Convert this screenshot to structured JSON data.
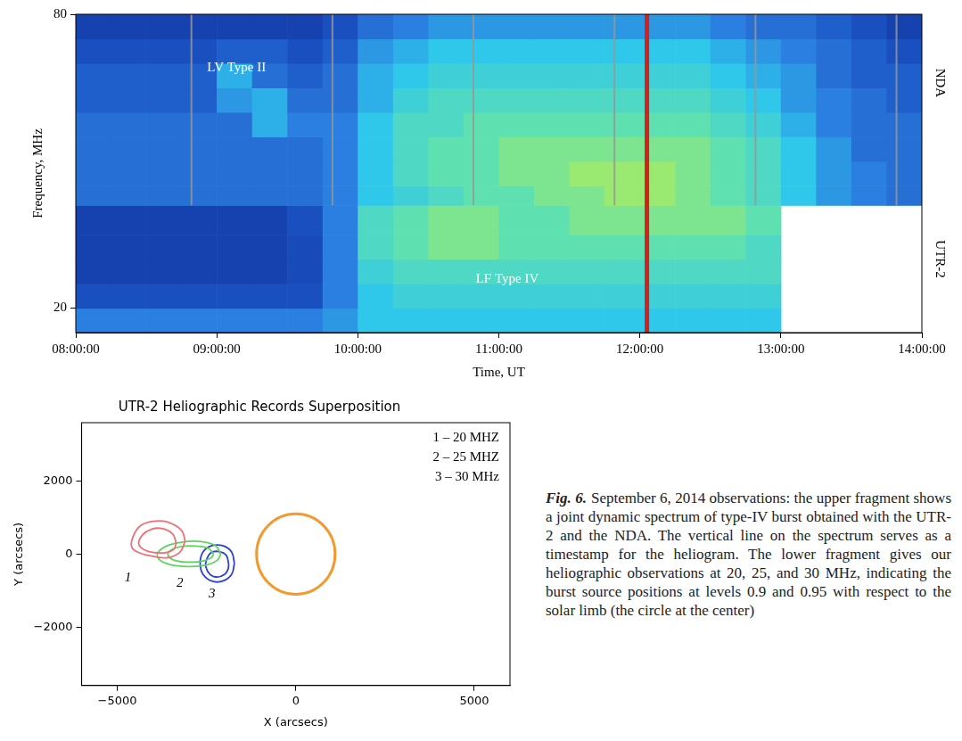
{
  "chart_data": [
    {
      "type": "heatmap",
      "xlabel": "Time, UT",
      "ylabel": "Frequency, MHz",
      "xlim": [
        8,
        14
      ],
      "xticks": [
        {
          "value": 8,
          "label": "08:00:00"
        },
        {
          "value": 9,
          "label": "09:00:00"
        },
        {
          "value": 10,
          "label": "10:00:00"
        },
        {
          "value": 11,
          "label": "11:00:00"
        },
        {
          "value": 12,
          "label": "12:00:00"
        },
        {
          "value": 13,
          "label": "13:00:00"
        },
        {
          "value": 14,
          "label": "14:00:00"
        }
      ],
      "ylim": [
        15,
        80
      ],
      "yticks": [
        20,
        80
      ],
      "grid": false,
      "x_bins": [
        8,
        8.25,
        8.5,
        8.75,
        9,
        9.25,
        9.5,
        9.75,
        10,
        10.25,
        10.5,
        10.75,
        11,
        11.25,
        11.5,
        11.75,
        12,
        12.25,
        12.5,
        12.75,
        13,
        13.25,
        13.5,
        13.75,
        14
      ],
      "y_bins": [
        15,
        20,
        25,
        30,
        35,
        41,
        45,
        50,
        55,
        60,
        65,
        70,
        75,
        80
      ],
      "cells": [
        [
          3.5,
          3.5,
          3.5,
          3.5,
          3.5,
          3.5,
          3.5,
          4,
          5,
          5,
          5,
          5,
          5,
          5,
          5,
          5,
          5,
          5,
          5,
          5,
          null,
          null,
          null,
          null
        ],
        [
          2,
          2,
          2,
          2,
          2,
          2,
          2,
          3.5,
          5,
          5.5,
          5.5,
          5.5,
          5.5,
          5.5,
          5.5,
          5.5,
          5.5,
          5.5,
          5.5,
          5.5,
          null,
          null,
          null,
          null
        ],
        [
          1.5,
          1.5,
          1.5,
          1.5,
          1.5,
          1.5,
          1.8,
          3.5,
          5.5,
          6,
          6,
          6,
          6,
          6,
          6,
          6,
          6,
          6,
          6,
          6,
          null,
          null,
          null,
          null
        ],
        [
          1.5,
          1.5,
          1.5,
          1.5,
          1.5,
          1.5,
          1.8,
          3.5,
          6,
          6.5,
          7,
          7,
          6.5,
          6.5,
          6.5,
          6.5,
          6.5,
          6.5,
          6.5,
          6,
          null,
          null,
          null,
          null
        ],
        [
          1.5,
          1.5,
          1.5,
          1.5,
          1.5,
          1.5,
          2,
          3.5,
          6,
          6.5,
          7,
          7,
          6.5,
          6.5,
          7,
          7,
          7,
          7,
          7,
          6.5,
          null,
          null,
          null,
          null
        ],
        [
          3,
          3,
          3,
          3,
          3,
          3,
          3,
          3.5,
          5,
          5.5,
          6,
          6.5,
          6.5,
          7,
          7,
          7.5,
          7.5,
          7,
          6.5,
          6,
          5,
          4,
          3.5,
          3
        ],
        [
          3,
          3,
          3,
          3,
          3,
          3,
          3,
          3.5,
          5,
          6,
          6.5,
          6.5,
          7,
          7,
          7.5,
          7.5,
          7.5,
          7,
          6.5,
          6,
          5,
          4,
          3.5,
          3
        ],
        [
          3,
          3,
          3,
          3,
          3,
          3,
          3,
          3.5,
          5,
          6,
          6.5,
          6.5,
          7,
          7,
          7,
          7,
          7,
          7,
          6.5,
          6,
          5,
          4,
          3,
          3
        ],
        [
          3,
          3,
          3,
          3,
          3,
          4.5,
          3.5,
          3.5,
          5,
          6,
          6,
          6.5,
          6.5,
          6.5,
          6.5,
          6.5,
          6.5,
          6.5,
          6,
          5.5,
          4.5,
          3.5,
          3,
          3
        ],
        [
          2.5,
          2.5,
          2.5,
          2.5,
          4,
          4.5,
          3,
          3,
          4.5,
          5.5,
          6,
          6,
          6,
          6,
          6,
          6,
          6,
          6,
          5.5,
          5,
          4,
          3.5,
          3,
          2.5
        ],
        [
          2.5,
          2.5,
          2.5,
          2.5,
          4.5,
          3,
          2.5,
          3,
          4.5,
          5,
          5.5,
          5.5,
          5.5,
          5.5,
          5.5,
          5.5,
          5.5,
          5.5,
          5,
          4.5,
          4,
          3,
          2.5,
          2.5
        ],
        [
          2,
          2,
          2,
          2,
          2.5,
          2.5,
          2,
          2.5,
          4,
          4.5,
          5,
          5,
          5,
          5,
          5,
          5,
          5,
          5,
          4.5,
          4,
          3.5,
          3,
          2.5,
          2
        ],
        [
          1.5,
          1.5,
          1.5,
          1.5,
          1.5,
          1.5,
          1.5,
          2,
          3,
          3.5,
          4,
          4,
          4,
          4,
          4,
          4,
          4,
          4,
          3.5,
          3,
          3,
          2.5,
          2,
          1.5
        ]
      ],
      "color_range": [
        0,
        10
      ],
      "vertical_lines": [
        8.82,
        9.82,
        10.82,
        11.82,
        12.82,
        13.82
      ],
      "vertical_lines_range": [
        41,
        80
      ],
      "timestamp": 12.05,
      "annotations": [
        {
          "text": "LV Type II",
          "x": 9.14,
          "y": 69
        },
        {
          "text": "LF Type IV",
          "x": 11.06,
          "y": 26
        }
      ],
      "instrument_labels": [
        {
          "text": "NDA",
          "y": 66
        },
        {
          "text": "UTR-2",
          "y": 30
        }
      ]
    },
    {
      "type": "contour",
      "title": "UTR-2 Heliographic Records Superposition",
      "xlabel": "X (arcsecs)",
      "ylabel": "Y (arcsecs)",
      "xlim": [
        -6000,
        6000
      ],
      "xticks": [
        {
          "value": -5000,
          "label": "−5000"
        },
        0,
        5000
      ],
      "ylim": [
        -3600,
        3600
      ],
      "yticks": [
        {
          "value": -2000,
          "label": "−2000"
        },
        0,
        2000
      ],
      "grid": false,
      "legend": "upper right",
      "series": [
        {
          "name": "1 – 20 MHZ",
          "label": "1",
          "label_x": -4700,
          "label_y": -650,
          "color": "#ee6f78",
          "contours": [
            {
              "x": [
                -3100,
                -3200,
                -3600,
                -4000,
                -4350,
                -4550,
                -4600,
                -4400,
                -4000,
                -3600,
                -3250,
                -3100
              ],
              "y": [
                350,
                650,
                880,
                900,
                780,
                500,
                200,
                40,
                -60,
                -100,
                50,
                350
              ]
            },
            {
              "x": [
                -3350,
                -3450,
                -3750,
                -4050,
                -4300,
                -4400,
                -4250,
                -3950,
                -3650,
                -3420,
                -3350
              ],
              "y": [
                300,
                550,
                700,
                680,
                520,
                280,
                120,
                40,
                40,
                130,
                300
              ]
            }
          ]
        },
        {
          "name": "2 – 25 MHZ",
          "label": "2",
          "label_x": -3250,
          "label_y": -800,
          "color": "#5fd35f",
          "contours": [
            {
              "x": [
                -2100,
                -2250,
                -2650,
                -3100,
                -3550,
                -3850,
                -3850,
                -3550,
                -3000,
                -2500,
                -2200,
                -2100
              ],
              "y": [
                0,
                230,
                340,
                340,
                250,
                60,
                -120,
                -280,
                -340,
                -300,
                -170,
                0
              ]
            },
            {
              "x": [
                -2300,
                -2450,
                -2800,
                -3200,
                -3500,
                -3580,
                -3400,
                -3000,
                -2600,
                -2370,
                -2300
              ],
              "y": [
                0,
                160,
                220,
                210,
                110,
                -30,
                -170,
                -220,
                -190,
                -100,
                0
              ]
            }
          ]
        },
        {
          "name": "3 – 30 MHz",
          "label": "3",
          "label_x": -2350,
          "label_y": -1100,
          "color": "#2b3fd6",
          "contours": [
            {
              "x": [
                -1720,
                -1800,
                -2050,
                -2350,
                -2600,
                -2680,
                -2600,
                -2350,
                -2050,
                -1800,
                -1720
              ],
              "y": [
                -250,
                60,
                230,
                230,
                60,
                -250,
                -550,
                -740,
                -740,
                -560,
                -250
              ]
            },
            {
              "x": [
                -1880,
                -1950,
                -2150,
                -2370,
                -2500,
                -2520,
                -2400,
                -2200,
                -2000,
                -1900,
                -1880
              ],
              "y": [
                -280,
                -30,
                70,
                40,
                -150,
                -350,
                -560,
                -630,
                -560,
                -420,
                -280
              ]
            }
          ]
        }
      ],
      "limb": {
        "x": 0,
        "y": 0,
        "radius": 1100,
        "color": "#f39a2e"
      }
    }
  ],
  "caption": {
    "label": "Fig. 6.",
    "text": "September 6, 2014 observations: the upper fragment shows a joint dynamic spectrum of type-IV burst obtained with the UTR-2 and the NDA. The vertical line on the spectrum serves as a timestamp for the heliogram. The lower fragment gives our heliographic observations at 20, 25, and 30 MHz, indicating the burst source positions at levels 0.9 and 0.95 with respect to the solar limb (the circle at the center)"
  }
}
